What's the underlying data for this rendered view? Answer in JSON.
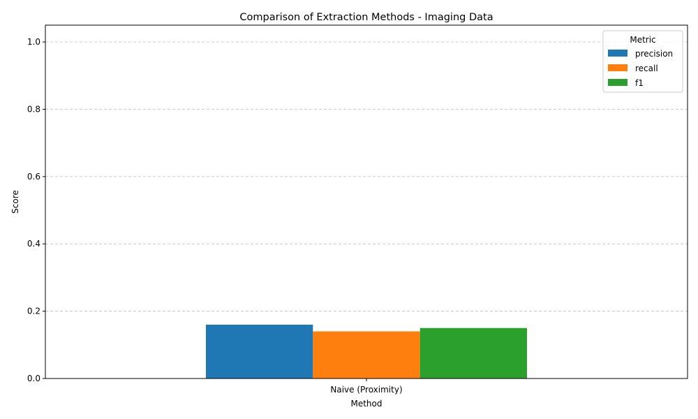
{
  "chart_data": {
    "type": "bar",
    "title": "Comparison of Extraction Methods - Imaging Data",
    "xlabel": "Method",
    "ylabel": "Score",
    "ylim": [
      0,
      1.05
    ],
    "yticks": [
      "0.0",
      "0.2",
      "0.4",
      "0.6",
      "0.8",
      "1.0"
    ],
    "grid": true,
    "legend_position": "top-right",
    "legend_title": "Metric",
    "categories": [
      "Naive (Proximity)"
    ],
    "series": [
      {
        "name": "precision",
        "color": "#1f77b4",
        "values": [
          0.16
        ]
      },
      {
        "name": "recall",
        "color": "#ff7f0e",
        "values": [
          0.14
        ]
      },
      {
        "name": "f1",
        "color": "#2ca02c",
        "values": [
          0.15
        ]
      }
    ]
  }
}
